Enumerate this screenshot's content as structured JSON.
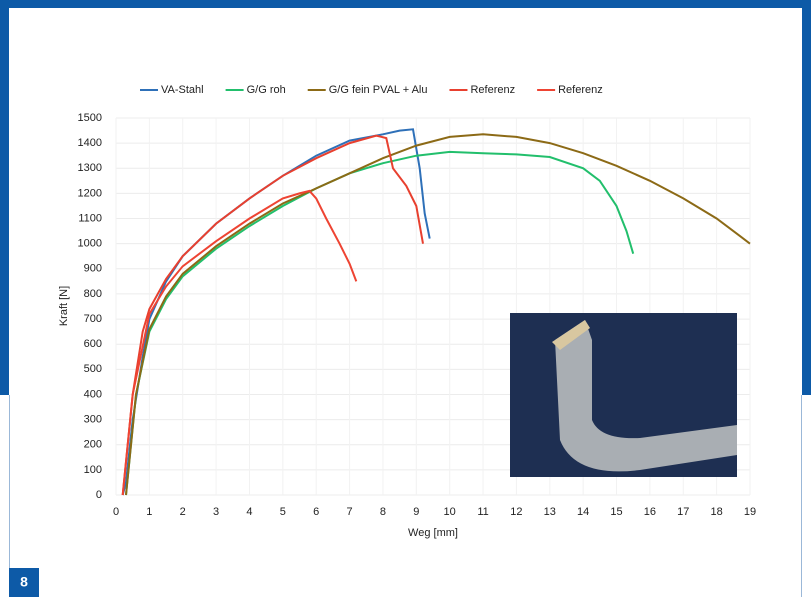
{
  "figure_number": "8",
  "chart_data": {
    "type": "line",
    "xlabel": "Weg [mm]",
    "ylabel": "Kraft [N]",
    "xlim": [
      0,
      19
    ],
    "xticks": [
      0,
      1,
      2,
      3,
      4,
      5,
      6,
      7,
      8,
      9,
      10,
      11,
      12,
      13,
      14,
      15,
      16,
      17,
      18,
      19
    ],
    "ylim": [
      0,
      1500
    ],
    "yticks": [
      0,
      100,
      200,
      300,
      400,
      500,
      600,
      700,
      800,
      900,
      1000,
      1100,
      1200,
      1300,
      1400,
      1500
    ],
    "grid": true,
    "legend": "top",
    "series": [
      {
        "name": "VA-Stahl",
        "color": "#2e70b8",
        "x": [
          0.2,
          0.3,
          0.5,
          0.8,
          1,
          1.5,
          2,
          3,
          4,
          5,
          6,
          7,
          8,
          8.5,
          8.9,
          9.1,
          9.25,
          9.4
        ],
        "values": [
          0,
          50,
          300,
          550,
          700,
          850,
          950,
          1080,
          1180,
          1270,
          1350,
          1410,
          1435,
          1450,
          1455,
          1300,
          1120,
          1020
        ]
      },
      {
        "name": "G/G roh",
        "color": "#22bf6c",
        "x": [
          0.3,
          0.6,
          1,
          1.5,
          2,
          3,
          4,
          5,
          6,
          7,
          8,
          9,
          10,
          11,
          12,
          13,
          14,
          14.5,
          15,
          15.3,
          15.5
        ],
        "values": [
          0,
          400,
          650,
          780,
          870,
          980,
          1070,
          1150,
          1220,
          1280,
          1320,
          1350,
          1365,
          1360,
          1355,
          1345,
          1300,
          1250,
          1150,
          1050,
          960
        ]
      },
      {
        "name": "G/G fein PVAL + Alu",
        "color": "#8c6a16",
        "x": [
          0.3,
          0.6,
          1,
          1.5,
          2,
          3,
          4,
          5,
          6,
          7,
          8,
          9,
          10,
          11,
          12,
          13,
          14,
          15,
          16,
          17,
          18,
          18.7,
          19
        ],
        "values": [
          0,
          400,
          660,
          790,
          880,
          990,
          1080,
          1160,
          1220,
          1280,
          1340,
          1390,
          1425,
          1435,
          1425,
          1400,
          1360,
          1310,
          1250,
          1180,
          1100,
          1030,
          1000
        ]
      },
      {
        "name": "Referenz",
        "color": "#e8402f",
        "x": [
          0.2,
          0.5,
          0.8,
          1,
          1.5,
          2,
          3,
          4,
          5,
          6,
          7,
          7.8,
          8.1,
          8.3,
          8.7,
          9.0,
          9.2
        ],
        "values": [
          0,
          400,
          650,
          740,
          860,
          950,
          1080,
          1180,
          1270,
          1340,
          1400,
          1430,
          1420,
          1300,
          1230,
          1150,
          1000
        ]
      },
      {
        "name": "Referenz",
        "color": "#ee4433",
        "x": [
          0.2,
          0.5,
          1,
          1.5,
          2,
          3,
          4,
          5,
          5.5,
          5.8,
          6.0,
          6.3,
          6.7,
          7,
          7.2
        ],
        "values": [
          0,
          400,
          720,
          830,
          910,
          1010,
          1100,
          1180,
          1200,
          1210,
          1180,
          1100,
          1000,
          920,
          850
        ]
      }
    ]
  }
}
